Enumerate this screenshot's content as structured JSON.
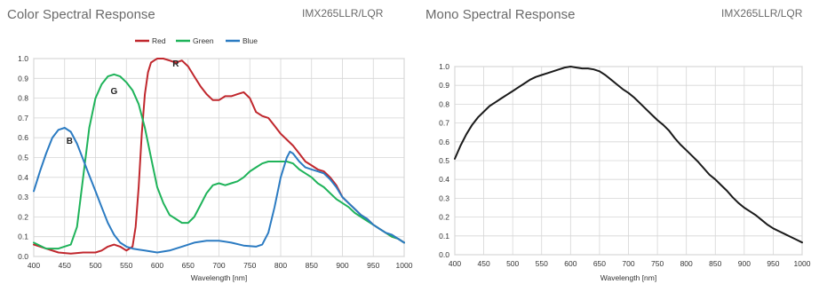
{
  "header": {
    "left_title": "Color Spectral Response",
    "left_model": "IMX265LLR/LQR",
    "right_title": "Mono Spectral Response",
    "right_model": "IMX265LLR/LQR"
  },
  "chart_data": [
    {
      "type": "line",
      "title": "Color Spectral Response",
      "xlabel": "Wavelength [nm]",
      "ylabel": "",
      "xlim": [
        400,
        1000
      ],
      "ylim": [
        0,
        1.0
      ],
      "xticks": [
        "400",
        "450",
        "500",
        "550",
        "600",
        "650",
        "700",
        "750",
        "800",
        "850",
        "900",
        "950",
        "1000"
      ],
      "yticks": [
        "0.0",
        "0.1",
        "0.2",
        "0.3",
        "0.4",
        "0.5",
        "0.6",
        "0.7",
        "0.8",
        "0.9",
        "1.0"
      ],
      "grid": true,
      "legend": "top",
      "annotations": [
        {
          "text": "R",
          "x": 630,
          "y": 0.96
        },
        {
          "text": "G",
          "x": 530,
          "y": 0.82
        },
        {
          "text": "B",
          "x": 458,
          "y": 0.57
        }
      ],
      "series": [
        {
          "name": "Red",
          "color": "#c0272d",
          "x": [
            400,
            420,
            440,
            460,
            480,
            500,
            510,
            520,
            530,
            540,
            550,
            560,
            565,
            570,
            575,
            580,
            585,
            590,
            595,
            600,
            610,
            620,
            630,
            640,
            650,
            660,
            670,
            680,
            690,
            700,
            710,
            720,
            730,
            740,
            750,
            760,
            770,
            780,
            790,
            800,
            810,
            820,
            830,
            840,
            850,
            860,
            870,
            880,
            890,
            900,
            910,
            920,
            930,
            940,
            950,
            960,
            970,
            980,
            990,
            1000
          ],
          "y": [
            0.06,
            0.04,
            0.02,
            0.015,
            0.02,
            0.02,
            0.03,
            0.05,
            0.06,
            0.05,
            0.03,
            0.05,
            0.15,
            0.35,
            0.62,
            0.82,
            0.93,
            0.98,
            0.99,
            1.0,
            1.0,
            0.99,
            0.98,
            0.99,
            0.96,
            0.91,
            0.86,
            0.82,
            0.79,
            0.79,
            0.81,
            0.81,
            0.82,
            0.83,
            0.8,
            0.73,
            0.71,
            0.7,
            0.66,
            0.62,
            0.59,
            0.56,
            0.52,
            0.48,
            0.46,
            0.44,
            0.43,
            0.4,
            0.36,
            0.3,
            0.27,
            0.24,
            0.21,
            0.19,
            0.16,
            0.14,
            0.12,
            0.1,
            0.09,
            0.07
          ]
        },
        {
          "name": "Green",
          "color": "#1fb35a",
          "x": [
            400,
            420,
            440,
            460,
            470,
            480,
            490,
            500,
            510,
            520,
            530,
            540,
            550,
            560,
            570,
            580,
            590,
            600,
            610,
            620,
            630,
            640,
            650,
            660,
            670,
            680,
            690,
            700,
            710,
            720,
            730,
            740,
            750,
            760,
            770,
            780,
            790,
            800,
            810,
            820,
            830,
            840,
            850,
            860,
            870,
            880,
            890,
            900,
            910,
            920,
            930,
            940,
            950,
            960,
            970,
            980,
            990,
            1000
          ],
          "y": [
            0.07,
            0.04,
            0.04,
            0.06,
            0.15,
            0.4,
            0.65,
            0.8,
            0.87,
            0.91,
            0.92,
            0.91,
            0.88,
            0.84,
            0.77,
            0.65,
            0.5,
            0.35,
            0.27,
            0.21,
            0.19,
            0.17,
            0.17,
            0.2,
            0.26,
            0.32,
            0.36,
            0.37,
            0.36,
            0.37,
            0.38,
            0.4,
            0.43,
            0.45,
            0.47,
            0.48,
            0.48,
            0.48,
            0.48,
            0.47,
            0.44,
            0.42,
            0.4,
            0.37,
            0.35,
            0.32,
            0.29,
            0.27,
            0.25,
            0.22,
            0.2,
            0.18,
            0.16,
            0.14,
            0.12,
            0.1,
            0.09,
            0.07
          ]
        },
        {
          "name": "Blue",
          "color": "#2b7bc2",
          "x": [
            400,
            410,
            420,
            430,
            440,
            450,
            460,
            470,
            480,
            490,
            500,
            510,
            520,
            530,
            540,
            550,
            560,
            570,
            580,
            590,
            600,
            620,
            640,
            660,
            680,
            700,
            720,
            740,
            760,
            770,
            780,
            790,
            800,
            810,
            815,
            820,
            830,
            840,
            850,
            860,
            870,
            880,
            890,
            900,
            910,
            920,
            930,
            940,
            950,
            960,
            970,
            980,
            990,
            1000
          ],
          "y": [
            0.33,
            0.43,
            0.52,
            0.6,
            0.64,
            0.65,
            0.63,
            0.57,
            0.49,
            0.41,
            0.33,
            0.25,
            0.17,
            0.11,
            0.07,
            0.05,
            0.04,
            0.035,
            0.03,
            0.025,
            0.02,
            0.03,
            0.05,
            0.07,
            0.08,
            0.08,
            0.07,
            0.055,
            0.05,
            0.06,
            0.12,
            0.25,
            0.4,
            0.5,
            0.53,
            0.52,
            0.48,
            0.45,
            0.44,
            0.43,
            0.42,
            0.39,
            0.35,
            0.3,
            0.27,
            0.24,
            0.21,
            0.19,
            0.16,
            0.14,
            0.12,
            0.11,
            0.09,
            0.07
          ]
        }
      ]
    },
    {
      "type": "line",
      "title": "Mono Spectral Response",
      "xlabel": "Wavelength [nm]",
      "ylabel": "",
      "xlim": [
        400,
        1000
      ],
      "ylim": [
        0,
        1.0
      ],
      "xticks": [
        "400",
        "450",
        "500",
        "550",
        "600",
        "650",
        "700",
        "750",
        "800",
        "850",
        "900",
        "950",
        "1000"
      ],
      "yticks": [
        "0.0",
        "0.1",
        "0.2",
        "0.3",
        "0.4",
        "0.5",
        "0.6",
        "0.7",
        "0.8",
        "0.9",
        "1.0"
      ],
      "grid": true,
      "series": [
        {
          "name": "",
          "color": "#1a1a1a",
          "x": [
            400,
            410,
            420,
            430,
            440,
            450,
            460,
            470,
            480,
            490,
            500,
            510,
            520,
            530,
            540,
            550,
            560,
            570,
            580,
            590,
            600,
            610,
            620,
            630,
            640,
            650,
            660,
            670,
            680,
            690,
            700,
            710,
            720,
            730,
            740,
            750,
            760,
            770,
            780,
            790,
            800,
            810,
            820,
            830,
            840,
            850,
            860,
            870,
            880,
            890,
            900,
            910,
            920,
            930,
            940,
            950,
            960,
            970,
            980,
            990,
            1000
          ],
          "y": [
            0.51,
            0.58,
            0.64,
            0.69,
            0.73,
            0.76,
            0.79,
            0.81,
            0.83,
            0.85,
            0.87,
            0.89,
            0.91,
            0.93,
            0.945,
            0.955,
            0.965,
            0.975,
            0.985,
            0.995,
            1.0,
            0.995,
            0.99,
            0.99,
            0.985,
            0.975,
            0.955,
            0.93,
            0.905,
            0.88,
            0.86,
            0.835,
            0.805,
            0.775,
            0.745,
            0.715,
            0.69,
            0.66,
            0.62,
            0.585,
            0.555,
            0.525,
            0.495,
            0.46,
            0.425,
            0.4,
            0.37,
            0.34,
            0.305,
            0.275,
            0.25,
            0.23,
            0.21,
            0.185,
            0.16,
            0.14,
            0.125,
            0.11,
            0.095,
            0.08,
            0.065
          ]
        }
      ]
    }
  ]
}
